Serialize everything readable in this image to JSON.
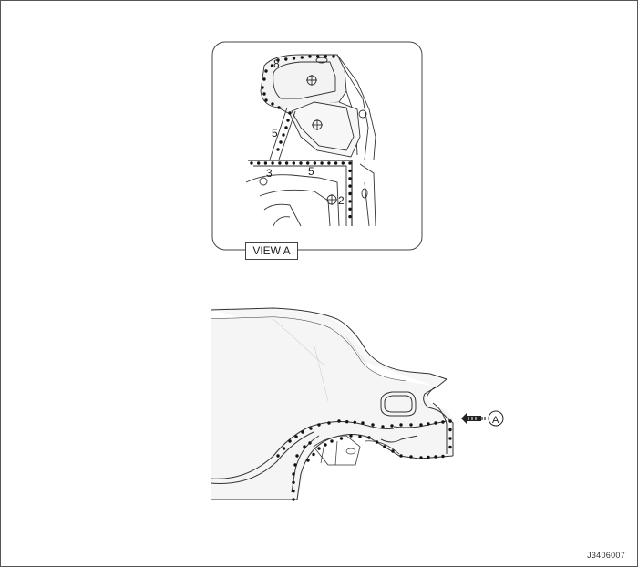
{
  "callouts": {
    "part_8": "8",
    "part_5_upper": "5",
    "part_3": "3",
    "part_5_lower": "5",
    "part_2": "2"
  },
  "view_label": "VIEW A",
  "arrow_marker": "A",
  "figure_code": "J3406007",
  "colors": {
    "line": "#333333",
    "fill": "#f4f4f4",
    "weld": "#111111"
  },
  "icons": [
    "weld-spot-icon",
    "view-arrow-icon",
    "bolt-hole-icon"
  ]
}
